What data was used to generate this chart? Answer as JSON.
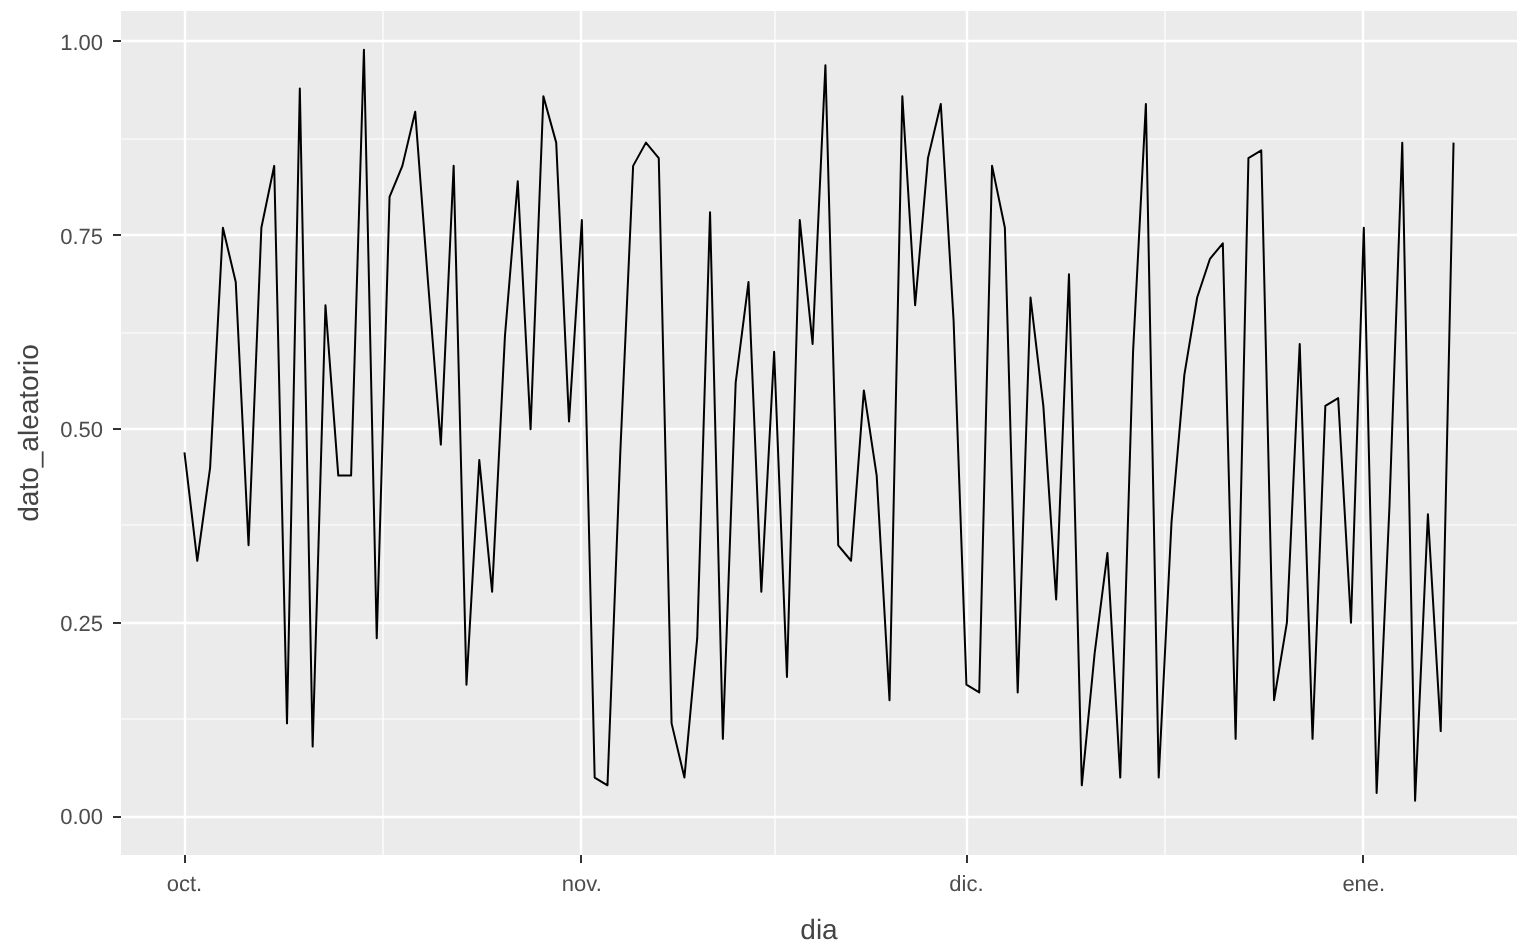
{
  "chart_data": {
    "type": "line",
    "xlabel": "dia",
    "ylabel": "dato_aleatorio",
    "categories": [
      "oct.",
      null,
      null,
      null,
      null,
      null,
      null,
      null,
      null,
      null,
      null,
      null,
      null,
      null,
      null,
      null,
      null,
      null,
      null,
      null,
      null,
      null,
      null,
      null,
      null,
      null,
      null,
      null,
      null,
      null,
      null,
      "nov.",
      null,
      null,
      null,
      null,
      null,
      null,
      null,
      null,
      null,
      null,
      null,
      null,
      null,
      null,
      null,
      null,
      null,
      null,
      null,
      null,
      null,
      null,
      null,
      null,
      null,
      null,
      null,
      null,
      null,
      "dic.",
      null,
      null,
      null,
      null,
      null,
      null,
      null,
      null,
      null,
      null,
      null,
      null,
      null,
      null,
      null,
      null,
      null,
      null,
      null,
      null,
      null,
      null,
      null,
      null,
      null,
      null,
      null,
      null,
      null,
      null,
      "ene.",
      null,
      null,
      null,
      null,
      null,
      null,
      null
    ],
    "series": [
      {
        "color": "#000000",
        "values": [
          0.47,
          0.33,
          0.45,
          0.76,
          0.69,
          0.35,
          0.76,
          0.84,
          0.12,
          0.94,
          0.09,
          0.66,
          0.44,
          0.44,
          0.99,
          0.23,
          0.8,
          0.84,
          0.91,
          0.69,
          0.48,
          0.84,
          0.17,
          0.46,
          0.29,
          0.62,
          0.82,
          0.5,
          0.93,
          0.87,
          0.51,
          0.77,
          0.05,
          0.04,
          0.47,
          0.84,
          0.87,
          0.85,
          0.12,
          0.05,
          0.23,
          0.78,
          0.1,
          0.56,
          0.69,
          0.29,
          0.6,
          0.18,
          0.77,
          0.61,
          0.97,
          0.35,
          0.33,
          0.55,
          0.44,
          0.15,
          0.93,
          0.66,
          0.85,
          0.92,
          0.64,
          0.17,
          0.16,
          0.84,
          0.76,
          0.16,
          0.67,
          0.53,
          0.28,
          0.7,
          0.04,
          0.21,
          0.34,
          0.05,
          0.6,
          0.92,
          0.05,
          0.38,
          0.57,
          0.67,
          0.72,
          0.74,
          0.1,
          0.85,
          0.86,
          0.15,
          0.25,
          0.61,
          0.1,
          0.53,
          0.54,
          0.25,
          0.76,
          0.03,
          0.4,
          0.87,
          0.02,
          0.39,
          0.11,
          0.87
        ]
      }
    ],
    "ylim": [
      -0.05,
      1.04
    ],
    "yticks": [
      {
        "value": 0,
        "label": "0.00"
      },
      {
        "value": 0.25,
        "label": "0.25"
      },
      {
        "value": 0.5,
        "label": "0.50"
      },
      {
        "value": 0.75,
        "label": "0.75"
      },
      {
        "value": 1,
        "label": "1.00"
      }
    ],
    "grid": true,
    "line_style": "solid",
    "marker": "none"
  }
}
